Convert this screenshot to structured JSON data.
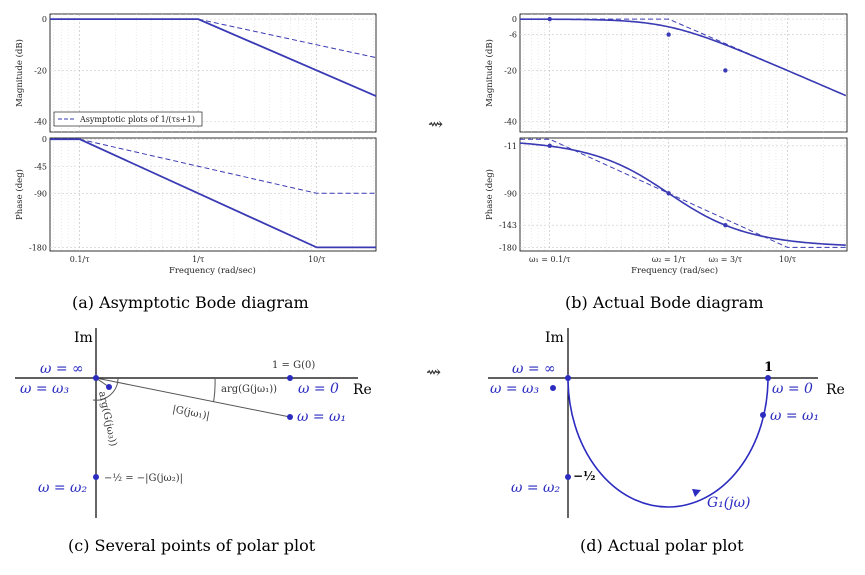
{
  "captions": {
    "a": "(a) Asymptotic Bode diagram",
    "b": "(b) Actual Bode diagram",
    "c": "(c) Several points of polar plot",
    "d": "(d) Actual polar plot"
  },
  "arrow_glyph": "⇝",
  "bode_common": {
    "mag_ylabel": "Magnitude (dB)",
    "phase_ylabel": "Phase (deg)",
    "xlabel": "Frequency (rad/sec)"
  },
  "bode_a": {
    "legend": "Asymptotic plots of 1/(τs+1)",
    "mag_ticks": [
      "0",
      "-20",
      "-40"
    ],
    "phase_ticks": [
      "0",
      "-45",
      "-90",
      "-180"
    ],
    "x_ticks": [
      "0.1/τ",
      "1/τ",
      "10/τ"
    ]
  },
  "bode_b": {
    "mag_ticks": [
      "0",
      "-6",
      "-20",
      "-40"
    ],
    "phase_ticks": [
      "-11",
      "-90",
      "-143",
      "-180"
    ],
    "x_ticks": [
      "ω₁ = 0.1/τ",
      "ω₂ = 1/τ",
      "ω₃ = 3/τ",
      "10/τ"
    ]
  },
  "polar_c": {
    "im": "Im",
    "re": "Re",
    "w_inf": "ω = ∞",
    "w3": "ω = ω₃",
    "w0": "ω = 0",
    "w1": "ω = ω₁",
    "w2": "ω = ω₂",
    "g0": "1 = G(0)",
    "arg1": "arg(G(jω₁))",
    "mag1": "|G(jω₁)|",
    "arg3": "arg(G(jω₃))",
    "half": "−½ = −|G(jω₂)|"
  },
  "polar_d": {
    "im": "Im",
    "re": "Re",
    "w_inf": "ω = ∞",
    "w3": "ω = ω₃",
    "w0": "ω = 0",
    "w1": "ω = ω₁",
    "w2": "ω = ω₂",
    "one": "1",
    "half": "−½",
    "g1": "G₁(jω)"
  },
  "chart_data": [
    {
      "type": "line",
      "title": "",
      "xlabel": "Frequency (rad/sec)",
      "ylabel": "Magnitude (dB)",
      "xscale": "log",
      "ylim": [
        -44,
        0
      ],
      "series": [
        {
          "name": "",
          "x": [
            "0.1/τ",
            "1/τ",
            "10/τ"
          ],
          "values": [
            0,
            0,
            -20
          ]
        },
        {
          "name": "Asymptotic plots of 1/(τs+1)",
          "x": [
            "0.1/τ",
            "1/τ",
            "10/τ"
          ],
          "values": [
            0,
            0,
            -10
          ]
        }
      ]
    },
    {
      "type": "line",
      "title": "",
      "xlabel": "Frequency (rad/sec)",
      "ylabel": "Phase (deg)",
      "xscale": "log",
      "ylim": [
        -180,
        0
      ],
      "series": [
        {
          "name": "",
          "x": [
            "0.1/τ",
            "1/τ",
            "10/τ"
          ],
          "values": [
            0,
            -90,
            -180
          ]
        },
        {
          "name": "",
          "x": [
            "0.1/τ",
            "1/τ",
            "10/τ"
          ],
          "values": [
            0,
            -45,
            -90
          ]
        }
      ]
    },
    {
      "type": "line",
      "title": "",
      "xlabel": "Frequency (rad/sec)",
      "ylabel": "Magnitude (dB)",
      "xscale": "log",
      "ylim": [
        -44,
        0
      ],
      "series": [
        {
          "name": "",
          "x": [
            "0.1/τ",
            "1/τ",
            "3/τ"
          ],
          "values": [
            0,
            -6,
            -20
          ]
        }
      ]
    },
    {
      "type": "line",
      "title": "",
      "xlabel": "Frequency (rad/sec)",
      "ylabel": "Phase (deg)",
      "xscale": "log",
      "ylim": [
        -180,
        0
      ],
      "series": [
        {
          "name": "",
          "x": [
            "0.1/τ",
            "1/τ",
            "3/τ"
          ],
          "values": [
            -11,
            -90,
            -143
          ]
        }
      ]
    }
  ]
}
